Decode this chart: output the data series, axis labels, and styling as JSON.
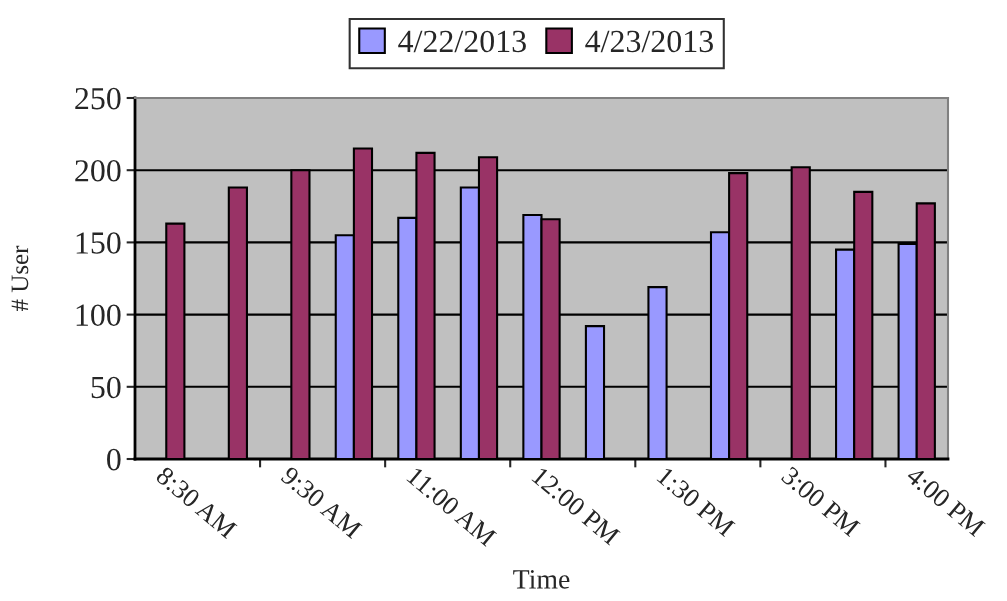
{
  "chart_data": {
    "type": "bar",
    "categories": [
      "8:30 AM",
      null,
      "9:30 AM",
      null,
      "11:00 AM",
      null,
      "12:00 PM",
      null,
      "1:30 PM",
      null,
      "3:00 PM",
      null,
      "4:00 PM"
    ],
    "series": [
      {
        "name": "4/22/2013",
        "color": "#9999ff",
        "values": [
          null,
          null,
          null,
          155,
          167,
          188,
          169,
          92,
          119,
          157,
          null,
          145,
          149
        ]
      },
      {
        "name": "4/23/2013",
        "color": "#993366",
        "values": [
          163,
          188,
          200,
          215,
          212,
          209,
          166,
          null,
          null,
          198,
          202,
          185,
          177
        ]
      }
    ],
    "xlabel": "Time",
    "ylabel": "# User",
    "ylim": [
      0,
      250
    ],
    "yticks": [
      0,
      50,
      100,
      150,
      200,
      250
    ],
    "grid": "y",
    "legend": "top"
  }
}
